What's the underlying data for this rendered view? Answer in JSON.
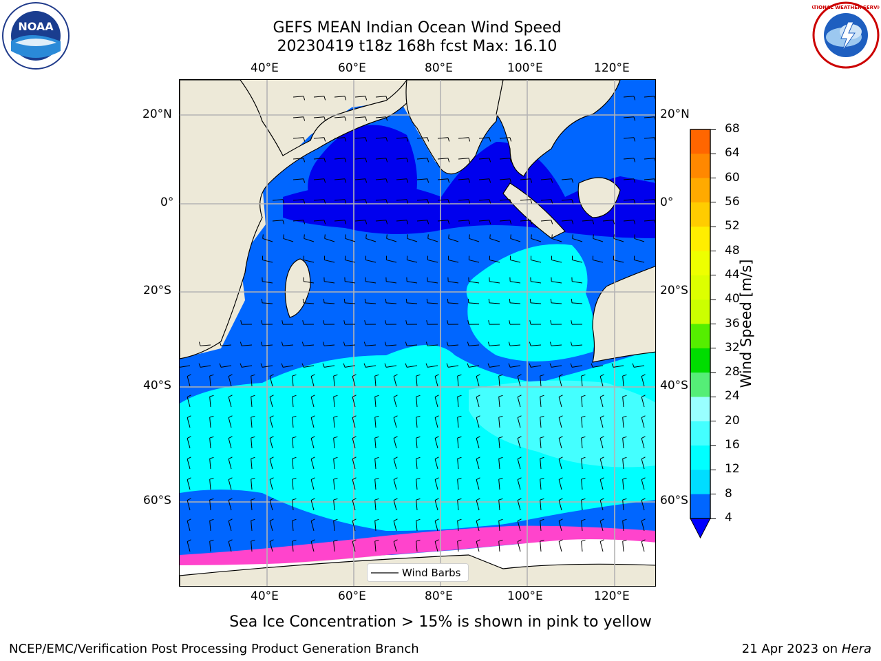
{
  "header": {
    "title_line1": "GEFS MEAN Indian Ocean Wind Speed",
    "title_line2": "20230419 t18z 168h fcst   Max: 16.10"
  },
  "logos": {
    "left": "NOAA",
    "right": "NATIONAL WEATHER SERVICE"
  },
  "map": {
    "top_lon_labels": [
      "40°E",
      "60°E",
      "80°E",
      "100°E",
      "120°E"
    ],
    "bottom_lon_labels": [
      "40°E",
      "60°E",
      "80°E",
      "100°E",
      "120°E"
    ],
    "left_lat_labels": [
      "20°N",
      "0°",
      "20°S",
      "40°S",
      "60°S"
    ],
    "right_lat_labels": [
      "20°N",
      "0°",
      "20°S",
      "40°S",
      "60°S"
    ],
    "legend_label": "Wind Barbs",
    "lon_range": [
      20,
      130
    ],
    "lat_range": [
      -72,
      28
    ],
    "gridlines": true,
    "colors": {
      "land": "#ede9d8",
      "coast": "#000000",
      "ice": "#ffffff"
    }
  },
  "colorbar": {
    "label": "Wind Speed [m/s]",
    "ticks": [
      "68",
      "64",
      "60",
      "56",
      "52",
      "48",
      "44",
      "40",
      "36",
      "32",
      "28",
      "24",
      "20",
      "16",
      "12",
      "8",
      "4"
    ],
    "colors": [
      "#ff0000",
      "#ff3300",
      "#ff6600",
      "#ff8800",
      "#ffaa00",
      "#ffcc00",
      "#ffee00",
      "#eeff00",
      "#ddff00",
      "#ccff00",
      "#55ee00",
      "#00dd00",
      "#55ee77",
      "#99ffff",
      "#44ffff",
      "#00ffff",
      "#00ddff",
      "#0066ff",
      "#0000ff"
    ]
  },
  "footer": {
    "sea_ice_note": "Sea Ice Concentration > 15% is shown in pink to yellow",
    "branch": "NCEP/EMC/Verification Post Processing Product Generation Branch",
    "date": "21 Apr 2023 on ",
    "host": "Hera"
  }
}
